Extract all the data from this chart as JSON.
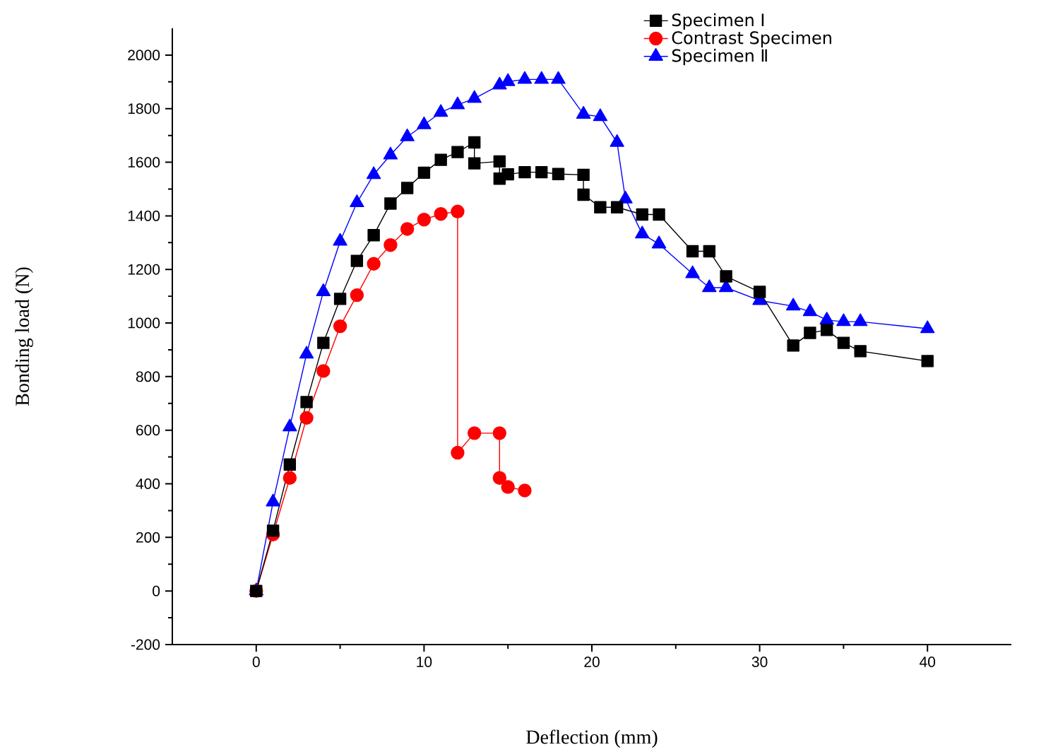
{
  "chart_data": {
    "type": "line",
    "xlabel": "Deflection (mm)",
    "ylabel": "Bonding load (N)",
    "xlim": [
      -5,
      45
    ],
    "ylim": [
      -200,
      2100
    ],
    "xticks": [
      0,
      10,
      20,
      30,
      40
    ],
    "yticks": [
      -200,
      0,
      200,
      400,
      600,
      800,
      1000,
      1200,
      1400,
      1600,
      1800,
      2000
    ],
    "legend": "top right",
    "grid": false,
    "series": [
      {
        "name": "Specimen Ⅰ",
        "color": "#000000",
        "marker": "square",
        "x": [
          0,
          1,
          2,
          3,
          4,
          5,
          6,
          7,
          8,
          9,
          10,
          11,
          12,
          13,
          13,
          14.5,
          14.5,
          15,
          16,
          17,
          18,
          19.5,
          19.5,
          20.5,
          21.5,
          23,
          24,
          26,
          27,
          28,
          30,
          32,
          33,
          34,
          35,
          36,
          40
        ],
        "values": [
          0,
          225,
          472,
          705,
          926,
          1090,
          1232,
          1328,
          1446,
          1504,
          1561,
          1609,
          1638,
          1674,
          1596,
          1603,
          1539,
          1555,
          1563,
          1563,
          1556,
          1553,
          1479,
          1432,
          1432,
          1405,
          1405,
          1268,
          1268,
          1174,
          1116,
          916,
          963,
          974,
          926,
          895,
          858
        ]
      },
      {
        "name": "Contrast Specimen",
        "color": "#ff0000",
        "marker": "circle",
        "x": [
          0,
          1,
          2,
          3,
          4,
          5,
          6,
          7,
          8,
          9,
          10,
          11,
          12,
          12,
          13,
          14.5,
          14.5,
          15,
          16
        ],
        "values": [
          0,
          211,
          422,
          646,
          821,
          988,
          1104,
          1221,
          1291,
          1351,
          1386,
          1407,
          1416,
          516,
          589,
          589,
          422,
          388,
          375
        ]
      },
      {
        "name": "Specimen Ⅱ",
        "color": "#0000ff",
        "marker": "triangle",
        "x": [
          0,
          1,
          2,
          3,
          4,
          5,
          6,
          7,
          8,
          9,
          10,
          11,
          12,
          13,
          14.5,
          15,
          16,
          17,
          18,
          19.5,
          20.5,
          21.5,
          22,
          23,
          24,
          26,
          27,
          28,
          30,
          32,
          33,
          34,
          35,
          36,
          40
        ],
        "values": [
          0,
          332,
          612,
          884,
          1117,
          1305,
          1449,
          1554,
          1627,
          1695,
          1740,
          1786,
          1814,
          1838,
          1888,
          1901,
          1909,
          1909,
          1909,
          1779,
          1770,
          1674,
          1463,
          1332,
          1295,
          1184,
          1132,
          1132,
          1084,
          1063,
          1042,
          1011,
          1005,
          1005,
          979
        ]
      }
    ]
  }
}
